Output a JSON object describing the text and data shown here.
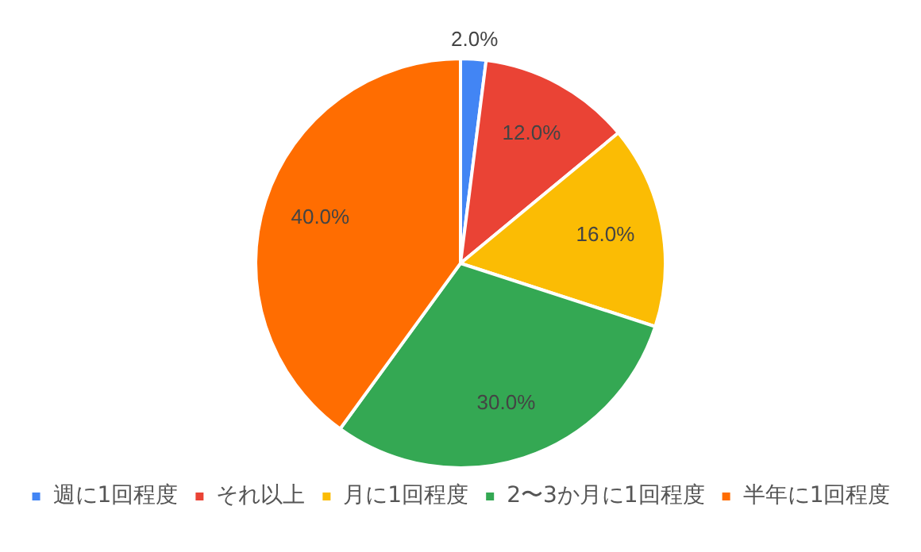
{
  "chart_data": {
    "type": "pie",
    "categories": [
      "週に1回程度",
      "それ以上",
      "月に1回程度",
      "2〜3か月に1回程度",
      "半年に1回程度"
    ],
    "values": [
      2,
      12,
      16,
      30,
      40
    ],
    "colors": [
      "#4285f4",
      "#ea4335",
      "#fbbc04",
      "#34a853",
      "#ff6d01"
    ],
    "value_labels": [
      "2.0%",
      "12.0%",
      "16.0%",
      "30.0%",
      "40.0%"
    ],
    "legend": "bottom"
  }
}
